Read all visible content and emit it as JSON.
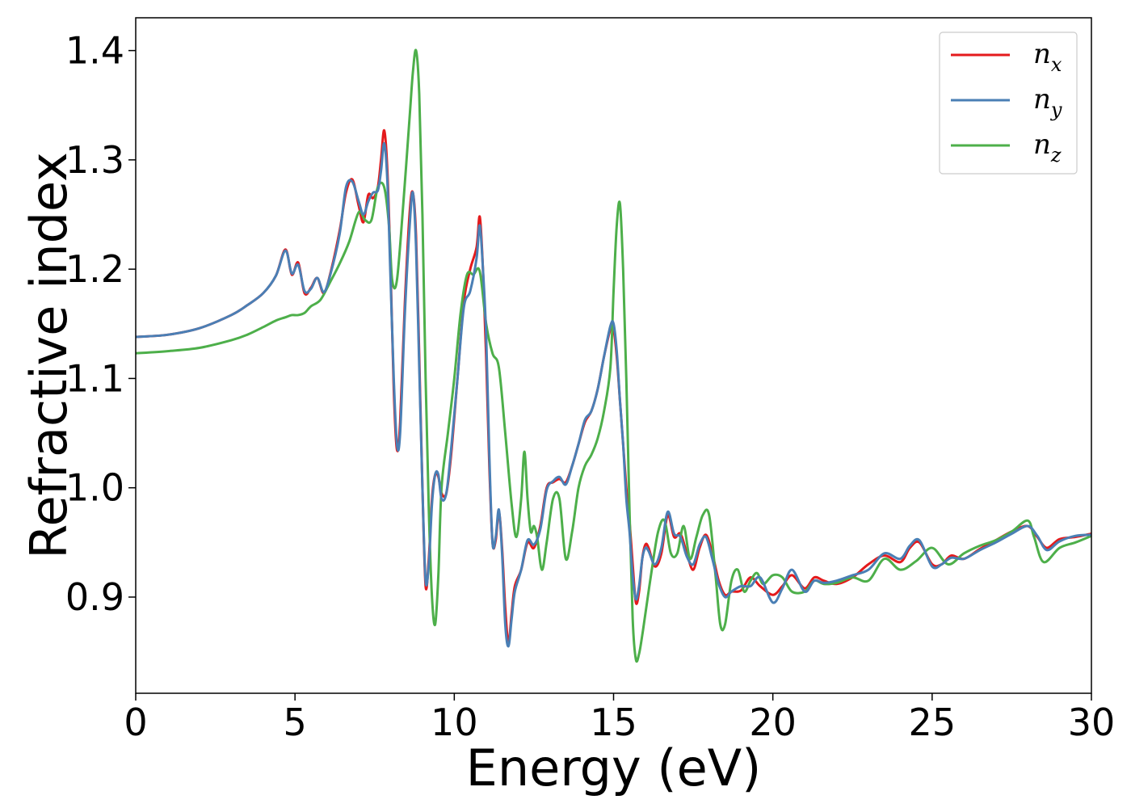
{
  "chart_data": {
    "type": "line",
    "xlabel": "Energy (eV)",
    "ylabel": "Refractive index",
    "xlim": [
      0,
      30
    ],
    "ylim": [
      0.812,
      1.43
    ],
    "xticks": [
      "0",
      "5",
      "10",
      "15",
      "20",
      "25",
      "30"
    ],
    "xtick_values": [
      0,
      5,
      10,
      15,
      20,
      25,
      30
    ],
    "yticks": [
      "0.9",
      "1.0",
      "1.1",
      "1.2",
      "1.3",
      "1.4"
    ],
    "ytick_values": [
      0.9,
      1.0,
      1.1,
      1.2,
      1.3,
      1.4
    ],
    "grid": false,
    "legend_position": "top-right",
    "series": [
      {
        "name": "n_x",
        "legend_base": "n",
        "legend_sub": "x",
        "color": "#e41a1c",
        "x": [
          0,
          1,
          2,
          3,
          3.5,
          4,
          4.4,
          4.7,
          4.9,
          5.1,
          5.3,
          5.5,
          5.7,
          5.9,
          6.1,
          6.4,
          6.6,
          6.8,
          7.0,
          7.15,
          7.3,
          7.45,
          7.6,
          7.7,
          7.8,
          7.9,
          8.0,
          8.1,
          8.2,
          8.3,
          8.45,
          8.6,
          8.7,
          8.8,
          8.9,
          9.0,
          9.1,
          9.2,
          9.3,
          9.4,
          9.5,
          9.6,
          9.75,
          9.9,
          10.1,
          10.3,
          10.5,
          10.7,
          10.8,
          10.9,
          11.0,
          11.1,
          11.2,
          11.3,
          11.4,
          11.5,
          11.6,
          11.7,
          11.8,
          11.9,
          12.1,
          12.3,
          12.5,
          12.7,
          12.9,
          13.1,
          13.3,
          13.5,
          13.7,
          13.9,
          14.1,
          14.3,
          14.5,
          14.7,
          14.9,
          15.0,
          15.1,
          15.2,
          15.3,
          15.4,
          15.5,
          15.6,
          15.7,
          15.8,
          15.9,
          16.0,
          16.1,
          16.3,
          16.5,
          16.7,
          16.9,
          17.1,
          17.3,
          17.5,
          17.7,
          17.9,
          18.1,
          18.3,
          18.5,
          18.7,
          19.0,
          19.3,
          19.6,
          20.0,
          20.3,
          20.6,
          21.0,
          21.3,
          21.6,
          22.0,
          22.5,
          23.0,
          23.5,
          24.0,
          24.3,
          24.6,
          25.0,
          25.3,
          25.6,
          26.0,
          26.5,
          27.0,
          27.5,
          28.0,
          28.3,
          28.6,
          29.0,
          29.5,
          30.0
        ],
        "y": [
          1.138,
          1.14,
          1.146,
          1.158,
          1.167,
          1.178,
          1.194,
          1.218,
          1.195,
          1.206,
          1.178,
          1.183,
          1.192,
          1.178,
          1.195,
          1.235,
          1.27,
          1.282,
          1.258,
          1.243,
          1.268,
          1.265,
          1.275,
          1.3,
          1.327,
          1.29,
          1.2,
          1.09,
          1.035,
          1.06,
          1.17,
          1.252,
          1.27,
          1.23,
          1.12,
          1.0,
          0.91,
          0.935,
          0.99,
          1.012,
          1.01,
          0.995,
          0.995,
          1.03,
          1.1,
          1.17,
          1.2,
          1.22,
          1.248,
          1.2,
          1.12,
          1.02,
          0.95,
          0.952,
          0.978,
          0.945,
          0.89,
          0.858,
          0.885,
          0.91,
          0.925,
          0.95,
          0.945,
          0.965,
          1.0,
          1.005,
          1.008,
          1.005,
          1.02,
          1.04,
          1.06,
          1.07,
          1.09,
          1.12,
          1.145,
          1.145,
          1.12,
          1.08,
          1.04,
          1.0,
          0.97,
          0.93,
          0.895,
          0.905,
          0.935,
          0.948,
          0.945,
          0.928,
          0.94,
          0.975,
          0.955,
          0.958,
          0.94,
          0.925,
          0.945,
          0.957,
          0.94,
          0.915,
          0.902,
          0.905,
          0.906,
          0.918,
          0.91,
          0.902,
          0.91,
          0.92,
          0.908,
          0.918,
          0.915,
          0.912,
          0.918,
          0.93,
          0.938,
          0.932,
          0.945,
          0.95,
          0.93,
          0.93,
          0.938,
          0.935,
          0.944,
          0.952,
          0.96,
          0.965,
          0.955,
          0.945,
          0.953,
          0.955,
          0.958
        ]
      },
      {
        "name": "n_y",
        "legend_base": "n",
        "legend_sub": "y",
        "color": "#4a7fb5",
        "x": [
          0,
          1,
          2,
          3,
          3.5,
          4,
          4.4,
          4.7,
          4.9,
          5.1,
          5.3,
          5.5,
          5.7,
          5.9,
          6.1,
          6.4,
          6.6,
          6.8,
          7.0,
          7.15,
          7.3,
          7.45,
          7.6,
          7.7,
          7.8,
          7.9,
          8.0,
          8.1,
          8.2,
          8.3,
          8.45,
          8.6,
          8.7,
          8.8,
          8.9,
          9.0,
          9.1,
          9.2,
          9.3,
          9.4,
          9.5,
          9.6,
          9.75,
          9.9,
          10.1,
          10.3,
          10.5,
          10.7,
          10.8,
          10.9,
          11.0,
          11.1,
          11.2,
          11.3,
          11.4,
          11.5,
          11.6,
          11.7,
          11.8,
          11.9,
          12.1,
          12.3,
          12.5,
          12.7,
          12.9,
          13.1,
          13.3,
          13.5,
          13.7,
          13.9,
          14.1,
          14.3,
          14.5,
          14.7,
          14.9,
          15.0,
          15.1,
          15.2,
          15.3,
          15.4,
          15.5,
          15.6,
          15.7,
          15.8,
          15.9,
          16.0,
          16.1,
          16.3,
          16.5,
          16.7,
          16.9,
          17.1,
          17.3,
          17.5,
          17.7,
          17.9,
          18.1,
          18.3,
          18.5,
          18.7,
          19.0,
          19.3,
          19.6,
          20.0,
          20.3,
          20.6,
          21.0,
          21.3,
          21.6,
          22.0,
          22.5,
          23.0,
          23.5,
          24.0,
          24.3,
          24.6,
          25.0,
          25.3,
          25.6,
          26.0,
          26.5,
          27.0,
          27.5,
          28.0,
          28.3,
          28.6,
          29.0,
          29.5,
          30.0
        ],
        "y": [
          1.138,
          1.14,
          1.146,
          1.158,
          1.167,
          1.178,
          1.194,
          1.217,
          1.196,
          1.204,
          1.18,
          1.182,
          1.192,
          1.179,
          1.194,
          1.232,
          1.275,
          1.28,
          1.262,
          1.25,
          1.262,
          1.27,
          1.272,
          1.29,
          1.315,
          1.28,
          1.19,
          1.1,
          1.04,
          1.05,
          1.16,
          1.24,
          1.27,
          1.22,
          1.11,
          1.0,
          0.915,
          0.93,
          0.985,
          1.012,
          1.012,
          0.99,
          0.995,
          1.035,
          1.1,
          1.165,
          1.18,
          1.21,
          1.24,
          1.2,
          1.14,
          1.03,
          0.95,
          0.955,
          0.98,
          0.94,
          0.875,
          0.855,
          0.88,
          0.905,
          0.925,
          0.952,
          0.948,
          0.962,
          0.998,
          1.006,
          1.01,
          1.003,
          1.02,
          1.04,
          1.062,
          1.07,
          1.09,
          1.12,
          1.148,
          1.15,
          1.125,
          1.08,
          1.04,
          0.99,
          0.96,
          0.92,
          0.898,
          0.91,
          0.935,
          0.945,
          0.942,
          0.93,
          0.945,
          0.978,
          0.958,
          0.955,
          0.937,
          0.93,
          0.948,
          0.955,
          0.935,
          0.912,
          0.9,
          0.905,
          0.91,
          0.91,
          0.918,
          0.895,
          0.908,
          0.925,
          0.905,
          0.915,
          0.913,
          0.915,
          0.92,
          0.925,
          0.94,
          0.935,
          0.947,
          0.952,
          0.928,
          0.93,
          0.936,
          0.935,
          0.943,
          0.95,
          0.958,
          0.965,
          0.956,
          0.943,
          0.951,
          0.956,
          0.957
        ]
      },
      {
        "name": "n_z",
        "legend_base": "n",
        "legend_sub": "z",
        "color": "#4daf4a",
        "x": [
          0,
          1,
          2,
          3,
          3.5,
          4,
          4.4,
          4.7,
          4.9,
          5.1,
          5.3,
          5.5,
          5.8,
          6.1,
          6.4,
          6.7,
          7.0,
          7.2,
          7.4,
          7.6,
          7.8,
          7.95,
          8.05,
          8.2,
          8.4,
          8.6,
          8.7,
          8.8,
          8.9,
          9.0,
          9.1,
          9.2,
          9.3,
          9.4,
          9.5,
          9.6,
          9.8,
          10.0,
          10.2,
          10.4,
          10.6,
          10.8,
          11.0,
          11.2,
          11.4,
          11.6,
          11.8,
          11.95,
          12.1,
          12.2,
          12.3,
          12.4,
          12.5,
          12.6,
          12.75,
          12.9,
          13.1,
          13.3,
          13.5,
          13.7,
          13.9,
          14.1,
          14.3,
          14.5,
          14.7,
          14.9,
          15.0,
          15.1,
          15.2,
          15.3,
          15.4,
          15.5,
          15.6,
          15.7,
          15.8,
          15.9,
          16.0,
          16.2,
          16.4,
          16.6,
          16.8,
          17.0,
          17.2,
          17.4,
          17.6,
          17.8,
          18.0,
          18.2,
          18.35,
          18.5,
          18.7,
          18.9,
          19.1,
          19.3,
          19.5,
          19.7,
          20.0,
          20.3,
          20.6,
          21.0,
          21.3,
          21.6,
          22.0,
          22.5,
          23.0,
          23.5,
          24.0,
          24.5,
          25.0,
          25.5,
          26.0,
          26.5,
          27.0,
          27.5,
          28.0,
          28.2,
          28.5,
          29.0,
          29.5,
          30.0
        ],
        "y": [
          1.123,
          1.125,
          1.128,
          1.135,
          1.14,
          1.147,
          1.153,
          1.156,
          1.158,
          1.158,
          1.16,
          1.166,
          1.172,
          1.188,
          1.205,
          1.225,
          1.252,
          1.245,
          1.245,
          1.275,
          1.275,
          1.24,
          1.19,
          1.19,
          1.26,
          1.34,
          1.38,
          1.4,
          1.36,
          1.25,
          1.1,
          0.98,
          0.9,
          0.875,
          0.92,
          1.0,
          1.05,
          1.1,
          1.16,
          1.195,
          1.195,
          1.198,
          1.15,
          1.123,
          1.11,
          1.05,
          0.985,
          0.955,
          0.99,
          1.033,
          0.99,
          0.96,
          0.965,
          0.955,
          0.925,
          0.95,
          0.99,
          0.99,
          0.935,
          0.96,
          1.0,
          1.02,
          1.03,
          1.045,
          1.07,
          1.11,
          1.18,
          1.24,
          1.26,
          1.2,
          1.1,
          0.98,
          0.88,
          0.843,
          0.848,
          0.865,
          0.885,
          0.925,
          0.96,
          0.97,
          0.94,
          0.94,
          0.965,
          0.935,
          0.955,
          0.975,
          0.975,
          0.92,
          0.875,
          0.875,
          0.915,
          0.925,
          0.905,
          0.915,
          0.922,
          0.912,
          0.92,
          0.918,
          0.905,
          0.905,
          0.915,
          0.912,
          0.913,
          0.918,
          0.915,
          0.935,
          0.925,
          0.933,
          0.945,
          0.93,
          0.94,
          0.947,
          0.952,
          0.96,
          0.97,
          0.955,
          0.932,
          0.945,
          0.95,
          0.956
        ]
      }
    ]
  }
}
